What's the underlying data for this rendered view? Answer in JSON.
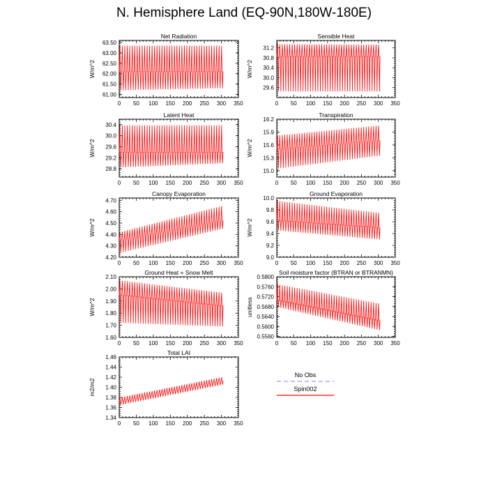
{
  "title": "N. Hemisphere Land (EQ-90N,180W-180E)",
  "colors": {
    "series": "#ff0000",
    "no_obs": "#9999ee",
    "frame": "#000000"
  },
  "legend": {
    "placement": "lower-right",
    "entries": [
      {
        "label": "No Obs",
        "style": "dashed",
        "color": "#9999ee"
      },
      {
        "label": "Spin002",
        "style": "solid",
        "color": "#ff0000"
      }
    ]
  },
  "chart_data": [
    {
      "type": "line",
      "title": "Net Radiation",
      "ylabel": "W/m^2",
      "xlabel": "",
      "xlim": [
        0,
        350
      ],
      "xticks": [
        0,
        50,
        100,
        150,
        200,
        250,
        300,
        350
      ],
      "ylim": [
        60.85,
        63.6
      ],
      "yticks": [
        "61.00",
        "61.50",
        "62.00",
        "62.50",
        "63.00",
        "63.50"
      ],
      "grid": false,
      "series": [
        {
          "x_range": [
            0,
            306
          ],
          "cycles": 42,
          "upper_start": 63.35,
          "upper_end": 63.35,
          "lower_start": 61.2,
          "lower_end": 61.3,
          "mid_start": 62.1,
          "mid_end": 62.1
        }
      ]
    },
    {
      "type": "line",
      "title": "Sensible Heat",
      "ylabel": "W/m^2",
      "xlabel": "",
      "xlim": [
        0,
        350
      ],
      "xticks": [
        0,
        50,
        100,
        150,
        200,
        250,
        300,
        350
      ],
      "ylim": [
        29.2,
        31.5
      ],
      "yticks": [
        "29.6",
        "30.0",
        "30.4",
        "30.8",
        "31.2"
      ],
      "grid": false,
      "series": [
        {
          "x_range": [
            0,
            306
          ],
          "cycles": 42,
          "upper_start": 31.35,
          "upper_end": 31.33,
          "lower_start": 29.45,
          "lower_end": 29.45,
          "mid_start": 30.85,
          "mid_end": 30.85
        }
      ]
    },
    {
      "type": "line",
      "title": "Latent Heat",
      "ylabel": "W/m^2",
      "xlabel": "",
      "xlim": [
        0,
        350
      ],
      "xticks": [
        0,
        50,
        100,
        150,
        200,
        250,
        300,
        350
      ],
      "ylim": [
        28.5,
        30.6
      ],
      "yticks": [
        "28.8",
        "29.2",
        "29.6",
        "30.0",
        "30.4"
      ],
      "grid": false,
      "series": [
        {
          "x_range": [
            0,
            306
          ],
          "cycles": 42,
          "upper_start": 30.38,
          "upper_end": 30.38,
          "lower_start": 28.85,
          "lower_end": 29.0,
          "mid_start": 29.4,
          "mid_end": 29.4
        }
      ]
    },
    {
      "type": "line",
      "title": "Transpiration",
      "ylabel": "W/m^2",
      "xlabel": "",
      "xlim": [
        0,
        350
      ],
      "xticks": [
        0,
        50,
        100,
        150,
        200,
        250,
        300,
        350
      ],
      "ylim": [
        14.85,
        16.2
      ],
      "yticks": [
        "15.0",
        "15.3",
        "15.6",
        "15.9",
        "16.2"
      ],
      "grid": false,
      "series": [
        {
          "x_range": [
            0,
            306
          ],
          "cycles": 42,
          "upper_start": 15.82,
          "upper_end": 16.05,
          "lower_start": 15.05,
          "lower_end": 15.35,
          "mid_start": 15.5,
          "mid_end": 15.7
        }
      ]
    },
    {
      "type": "line",
      "title": "Canopy Evaporation",
      "ylabel": "W/m^2",
      "xlabel": "",
      "xlim": [
        0,
        350
      ],
      "xticks": [
        0,
        50,
        100,
        150,
        200,
        250,
        300,
        350
      ],
      "ylim": [
        4.2,
        4.72
      ],
      "yticks": [
        "4.20",
        "4.30",
        "4.40",
        "4.50",
        "4.60",
        "4.70"
      ],
      "grid": false,
      "series": [
        {
          "x_range": [
            0,
            306
          ],
          "cycles": 42,
          "upper_start": 4.42,
          "upper_end": 4.65,
          "lower_start": 4.24,
          "lower_end": 4.45,
          "mid_start": 4.35,
          "mid_end": 4.52
        }
      ]
    },
    {
      "type": "line",
      "title": "Ground Evaporation",
      "ylabel": "W/m^2",
      "xlabel": "",
      "xlim": [
        0,
        350
      ],
      "xticks": [
        0,
        50,
        100,
        150,
        200,
        250,
        300,
        350
      ],
      "ylim": [
        9.0,
        10.0
      ],
      "yticks": [
        "9.0",
        "9.2",
        "9.4",
        "9.6",
        "9.8",
        "10.0"
      ],
      "grid": false,
      "series": [
        {
          "x_range": [
            0,
            306
          ],
          "cycles": 42,
          "upper_start": 9.95,
          "upper_end": 9.75,
          "lower_start": 9.45,
          "lower_end": 9.3,
          "mid_start": 9.62,
          "mid_end": 9.5
        }
      ]
    },
    {
      "type": "line",
      "title": "Ground Heat + Snow Melt",
      "ylabel": "W/m^2",
      "xlabel": "",
      "xlim": [
        0,
        350
      ],
      "xticks": [
        0,
        50,
        100,
        150,
        200,
        250,
        300,
        350
      ],
      "ylim": [
        1.6,
        2.1
      ],
      "yticks": [
        "1.60",
        "1.70",
        "1.80",
        "1.90",
        "2.00",
        "2.10"
      ],
      "grid": false,
      "series": [
        {
          "x_range": [
            0,
            306
          ],
          "cycles": 42,
          "upper_start": 2.07,
          "upper_end": 1.97,
          "lower_start": 1.72,
          "lower_end": 1.69,
          "mid_start": 1.95,
          "mid_end": 1.86
        }
      ]
    },
    {
      "type": "line",
      "title": "Soil moisture factor (BTRAN or BTRANMN)",
      "ylabel": "unitless",
      "xlabel": "",
      "xlim": [
        0,
        350
      ],
      "xticks": [
        0,
        50,
        100,
        150,
        200,
        250,
        300,
        350
      ],
      "ylim": [
        0.5556,
        0.58
      ],
      "yticks": [
        "0.5560",
        "0.5600",
        "0.5640",
        "0.5680",
        "0.5720",
        "0.5760",
        "0.5800"
      ],
      "grid": false,
      "series": [
        {
          "x_range": [
            0,
            306
          ],
          "cycles": 42,
          "upper_start": 0.577,
          "upper_end": 0.5693,
          "lower_start": 0.5677,
          "lower_end": 0.5585,
          "mid_start": 0.5706,
          "mid_end": 0.5624
        }
      ]
    },
    {
      "type": "line",
      "title": "Total LAI",
      "ylabel": "m2/m2",
      "xlabel": "",
      "xlim": [
        0,
        350
      ],
      "xticks": [
        0,
        50,
        100,
        150,
        200,
        250,
        300,
        350
      ],
      "ylim": [
        1.34,
        1.46
      ],
      "yticks": [
        "1.34",
        "1.36",
        "1.38",
        "1.40",
        "1.42",
        "1.44",
        "1.46"
      ],
      "grid": false,
      "series": [
        {
          "x_range": [
            0,
            306
          ],
          "cycles": 42,
          "upper_start": 1.38,
          "upper_end": 1.42,
          "lower_start": 1.365,
          "lower_end": 1.405,
          "mid_start": 1.372,
          "mid_end": 1.412
        }
      ]
    }
  ]
}
